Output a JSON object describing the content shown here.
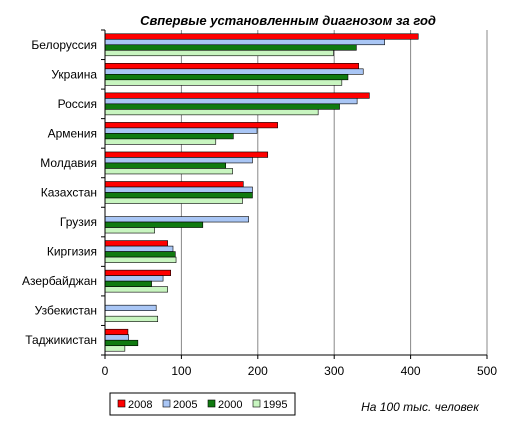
{
  "chart_data": {
    "type": "bar",
    "orientation": "horizontal",
    "title": "Cвпервые установленным  диагнозом за год",
    "note": "На 100 тыс. человек",
    "categories": [
      "Белоруссия",
      "Украина",
      "Россия",
      "Армения",
      "Молдавия",
      "Казахстан",
      "Грузия",
      "Киргизия",
      "Азербайджан",
      "Узбекистан",
      "Таджикистан"
    ],
    "series": [
      {
        "name": "2008",
        "color": "#ff0000",
        "values": [
          410,
          332,
          346,
          226,
          213,
          181,
          null,
          82,
          86,
          null,
          30
        ]
      },
      {
        "name": "2005",
        "color": "#a9c6f5",
        "values": [
          366,
          338,
          330,
          199,
          193,
          193,
          188,
          89,
          76,
          67,
          31
        ]
      },
      {
        "name": "2000",
        "color": "#107a10",
        "values": [
          329,
          318,
          307,
          168,
          158,
          193,
          128,
          92,
          61,
          null,
          43
        ]
      },
      {
        "name": "1995",
        "color": "#c8f5c0",
        "values": [
          299,
          310,
          279,
          145,
          167,
          180,
          65,
          93,
          82,
          69,
          26
        ]
      }
    ],
    "xlim": [
      0,
      500
    ],
    "xticks": [
      0,
      100,
      200,
      300,
      400,
      500
    ],
    "grid": true,
    "legend_position": "bottom"
  }
}
